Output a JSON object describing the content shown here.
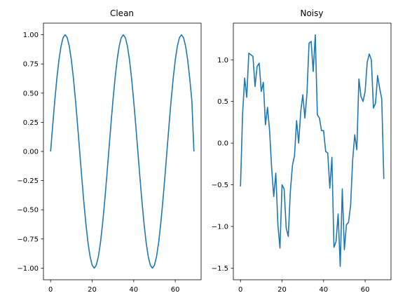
{
  "chart_data": [
    {
      "type": "line",
      "title": "Clean",
      "x": [
        0,
        1,
        2,
        3,
        4,
        5,
        6,
        7,
        8,
        9,
        10,
        11,
        12,
        13,
        14,
        15,
        16,
        17,
        18,
        19,
        20,
        21,
        22,
        23,
        24,
        25,
        26,
        27,
        28,
        29,
        30,
        31,
        32,
        33,
        34,
        35,
        36,
        37,
        38,
        39,
        40,
        41,
        42,
        43,
        44,
        45,
        46,
        47,
        48,
        49,
        50,
        51,
        52,
        53,
        54,
        55,
        56,
        57,
        58,
        59,
        60,
        61,
        62,
        63,
        64,
        65,
        66,
        67,
        68,
        69
      ],
      "series": [
        {
          "color": "#1f77b4",
          "values": [
            0.0,
            0.223,
            0.434,
            0.623,
            0.782,
            0.901,
            0.975,
            1.0,
            0.975,
            0.901,
            0.782,
            0.623,
            0.434,
            0.223,
            0.0,
            -0.223,
            -0.434,
            -0.623,
            -0.782,
            -0.901,
            -0.975,
            -1.0,
            -0.975,
            -0.901,
            -0.782,
            -0.623,
            -0.434,
            -0.223,
            0.0,
            0.223,
            0.434,
            0.623,
            0.782,
            0.901,
            0.975,
            1.0,
            0.975,
            0.901,
            0.782,
            0.623,
            0.434,
            0.223,
            0.0,
            -0.223,
            -0.434,
            -0.623,
            -0.782,
            -0.901,
            -0.975,
            -1.0,
            -0.975,
            -0.901,
            -0.782,
            -0.623,
            -0.434,
            -0.223,
            0.0,
            0.223,
            0.434,
            0.623,
            0.782,
            0.901,
            0.975,
            1.0,
            0.975,
            0.901,
            0.782,
            0.623,
            0.434,
            0.0
          ]
        }
      ],
      "xticks": [
        0,
        20,
        40,
        60
      ],
      "xtick_labels": [
        "0",
        "20",
        "40",
        "60"
      ],
      "yticks": [
        -1.0,
        -0.75,
        -0.5,
        -0.25,
        0.0,
        0.25,
        0.5,
        0.75,
        1.0
      ],
      "ytick_labels": [
        "−1.00",
        "−0.75",
        "−0.50",
        "−0.25",
        "0.00",
        "0.25",
        "0.50",
        "0.75",
        "1.00"
      ],
      "xlim": [
        -3.45,
        72.45
      ],
      "ylim": [
        -1.1,
        1.1
      ],
      "xlabel": "",
      "ylabel": "",
      "grid": false
    },
    {
      "type": "line",
      "title": "Noisy",
      "x": [
        0,
        1,
        2,
        3,
        4,
        5,
        6,
        7,
        8,
        9,
        10,
        11,
        12,
        13,
        14,
        15,
        16,
        17,
        18,
        19,
        20,
        21,
        22,
        23,
        24,
        25,
        26,
        27,
        28,
        29,
        30,
        31,
        32,
        33,
        34,
        35,
        36,
        37,
        38,
        39,
        40,
        41,
        42,
        43,
        44,
        45,
        46,
        47,
        48,
        49,
        50,
        51,
        52,
        53,
        54,
        55,
        56,
        57,
        58,
        59,
        60,
        61,
        62,
        63,
        64,
        65,
        66,
        67,
        68,
        69
      ],
      "series": [
        {
          "color": "#1f77b4",
          "values": [
            -0.52,
            0.35,
            0.78,
            0.55,
            1.08,
            1.06,
            1.04,
            0.68,
            0.92,
            0.96,
            0.62,
            0.73,
            0.22,
            0.43,
            0.15,
            -0.3,
            -0.64,
            -0.36,
            -0.98,
            -1.26,
            -0.5,
            -0.55,
            -1.02,
            -1.12,
            -0.58,
            -0.27,
            -0.15,
            0.27,
            0.0,
            0.38,
            0.58,
            0.3,
            0.6,
            1.2,
            1.22,
            0.86,
            1.3,
            0.34,
            0.3,
            0.15,
            0.15,
            -0.1,
            -0.12,
            -0.54,
            -0.17,
            -1.25,
            -1.18,
            -0.85,
            -1.48,
            -0.55,
            -1.28,
            -0.98,
            -0.95,
            -0.75,
            -0.2,
            0.1,
            -0.08,
            0.77,
            0.56,
            0.5,
            0.62,
            0.97,
            1.07,
            1.0,
            0.42,
            0.48,
            0.81,
            0.66,
            0.53,
            -0.43
          ]
        }
      ],
      "xticks": [
        0,
        20,
        40,
        60
      ],
      "xtick_labels": [
        "0",
        "20",
        "40",
        "60"
      ],
      "yticks": [
        -1.5,
        -1.0,
        -0.5,
        0.0,
        0.5,
        1.0
      ],
      "ytick_labels": [
        "−1.5",
        "−1.0",
        "−0.5",
        "0.0",
        "0.5",
        "1.0"
      ],
      "xlim": [
        -3.45,
        72.45
      ],
      "ylim": [
        -1.64,
        1.44
      ],
      "xlabel": "",
      "ylabel": "",
      "grid": false
    }
  ]
}
